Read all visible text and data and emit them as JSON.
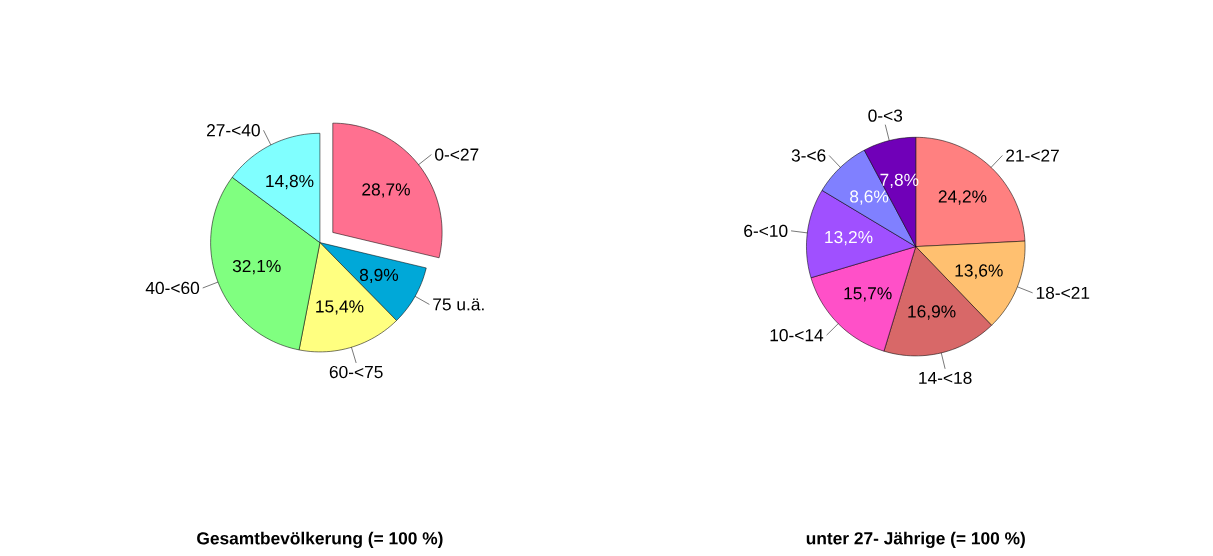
{
  "chart_data": [
    {
      "type": "pie",
      "title": "Gesamtbevölkerung (= 100 %)",
      "categories": [
        "0-<27",
        "75 u.ä.",
        "60-<75",
        "40-<60",
        "27-<40"
      ],
      "values": [
        28.7,
        8.9,
        15.4,
        32.1,
        14.8
      ],
      "value_labels": [
        "28,7%",
        "8,9%",
        "15,4%",
        "32,1%",
        "14,8%"
      ],
      "colors": [
        "#ff7090",
        "#00a8d8",
        "#ffff80",
        "#80ff80",
        "#80ffff"
      ]
    },
    {
      "type": "pie",
      "title": "unter 27- Jährige (= 100 %)",
      "categories": [
        "21-<27",
        "18-<21",
        "14-<18",
        "10-<14",
        "6-<10",
        "3-<6",
        "0-<3"
      ],
      "values": [
        24.2,
        13.6,
        16.9,
        15.7,
        13.2,
        8.6,
        7.8
      ],
      "value_labels": [
        "24,2%",
        "13,6%",
        "16,9%",
        "15,7%",
        "13,2%",
        "8,6%",
        "7,8%"
      ],
      "colors": [
        "#ff8080",
        "#ffc070",
        "#d86868",
        "#ff50c8",
        "#a050ff",
        "#8080ff",
        "#7000b8"
      ]
    }
  ]
}
